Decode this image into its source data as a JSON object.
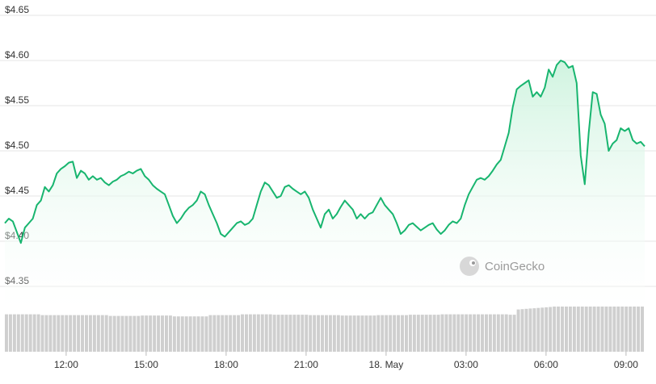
{
  "chart_data": {
    "type": "area",
    "watermark": "CoinGecko",
    "y_axis": {
      "ticks": [
        4.65,
        4.6,
        4.55,
        4.5,
        4.45,
        4.4,
        4.35
      ],
      "tick_labels": [
        "$4.65",
        "$4.60",
        "$4.55",
        "$4.50",
        "$4.45",
        "$4.40",
        "$4.35"
      ],
      "range": [
        4.325,
        4.65
      ]
    },
    "x_axis": {
      "tick_labels": [
        "12:00",
        "15:00",
        "18:00",
        "21:00",
        "18. May",
        "03:00",
        "06:00",
        "09:00"
      ],
      "tick_hours": [
        2.3,
        5.3,
        8.3,
        11.3,
        14.3,
        17.3,
        20.3,
        23.3
      ],
      "range_hours": [
        0,
        24
      ]
    },
    "series": [
      {
        "price_points_hours_value": [
          [
            0.0,
            4.42
          ],
          [
            0.15,
            4.425
          ],
          [
            0.3,
            4.422
          ],
          [
            0.45,
            4.41
          ],
          [
            0.6,
            4.398
          ],
          [
            0.75,
            4.415
          ],
          [
            0.9,
            4.42
          ],
          [
            1.05,
            4.425
          ],
          [
            1.2,
            4.44
          ],
          [
            1.35,
            4.445
          ],
          [
            1.5,
            4.46
          ],
          [
            1.65,
            4.455
          ],
          [
            1.8,
            4.462
          ],
          [
            1.95,
            4.475
          ],
          [
            2.1,
            4.48
          ],
          [
            2.25,
            4.483
          ],
          [
            2.4,
            4.487
          ],
          [
            2.55,
            4.488
          ],
          [
            2.7,
            4.47
          ],
          [
            2.85,
            4.478
          ],
          [
            3.0,
            4.475
          ],
          [
            3.15,
            4.468
          ],
          [
            3.3,
            4.472
          ],
          [
            3.45,
            4.468
          ],
          [
            3.6,
            4.47
          ],
          [
            3.75,
            4.465
          ],
          [
            3.9,
            4.462
          ],
          [
            4.05,
            4.466
          ],
          [
            4.2,
            4.468
          ],
          [
            4.35,
            4.472
          ],
          [
            4.5,
            4.474
          ],
          [
            4.65,
            4.477
          ],
          [
            4.8,
            4.475
          ],
          [
            4.95,
            4.478
          ],
          [
            5.1,
            4.48
          ],
          [
            5.25,
            4.472
          ],
          [
            5.4,
            4.468
          ],
          [
            5.55,
            4.462
          ],
          [
            5.7,
            4.458
          ],
          [
            5.85,
            4.455
          ],
          [
            6.0,
            4.452
          ],
          [
            6.15,
            4.44
          ],
          [
            6.3,
            4.428
          ],
          [
            6.45,
            4.42
          ],
          [
            6.6,
            4.425
          ],
          [
            6.75,
            4.432
          ],
          [
            6.9,
            4.437
          ],
          [
            7.05,
            4.44
          ],
          [
            7.2,
            4.445
          ],
          [
            7.35,
            4.455
          ],
          [
            7.5,
            4.452
          ],
          [
            7.65,
            4.44
          ],
          [
            7.8,
            4.43
          ],
          [
            7.95,
            4.42
          ],
          [
            8.1,
            4.408
          ],
          [
            8.25,
            4.405
          ],
          [
            8.4,
            4.41
          ],
          [
            8.55,
            4.415
          ],
          [
            8.7,
            4.42
          ],
          [
            8.85,
            4.422
          ],
          [
            9.0,
            4.418
          ],
          [
            9.15,
            4.42
          ],
          [
            9.3,
            4.425
          ],
          [
            9.45,
            4.44
          ],
          [
            9.6,
            4.455
          ],
          [
            9.75,
            4.465
          ],
          [
            9.9,
            4.462
          ],
          [
            10.05,
            4.455
          ],
          [
            10.2,
            4.448
          ],
          [
            10.35,
            4.45
          ],
          [
            10.5,
            4.46
          ],
          [
            10.65,
            4.462
          ],
          [
            10.8,
            4.458
          ],
          [
            10.95,
            4.455
          ],
          [
            11.1,
            4.452
          ],
          [
            11.25,
            4.455
          ],
          [
            11.4,
            4.448
          ],
          [
            11.55,
            4.435
          ],
          [
            11.7,
            4.425
          ],
          [
            11.85,
            4.415
          ],
          [
            12.0,
            4.43
          ],
          [
            12.15,
            4.435
          ],
          [
            12.3,
            4.425
          ],
          [
            12.45,
            4.43
          ],
          [
            12.6,
            4.438
          ],
          [
            12.75,
            4.445
          ],
          [
            12.9,
            4.44
          ],
          [
            13.05,
            4.435
          ],
          [
            13.2,
            4.425
          ],
          [
            13.35,
            4.43
          ],
          [
            13.5,
            4.425
          ],
          [
            13.65,
            4.43
          ],
          [
            13.8,
            4.432
          ],
          [
            13.95,
            4.44
          ],
          [
            14.1,
            4.448
          ],
          [
            14.25,
            4.44
          ],
          [
            14.4,
            4.435
          ],
          [
            14.55,
            4.43
          ],
          [
            14.7,
            4.42
          ],
          [
            14.85,
            4.408
          ],
          [
            15.0,
            4.412
          ],
          [
            15.15,
            4.418
          ],
          [
            15.3,
            4.42
          ],
          [
            15.45,
            4.416
          ],
          [
            15.6,
            4.412
          ],
          [
            15.75,
            4.415
          ],
          [
            15.9,
            4.418
          ],
          [
            16.05,
            4.42
          ],
          [
            16.2,
            4.413
          ],
          [
            16.35,
            4.408
          ],
          [
            16.5,
            4.412
          ],
          [
            16.65,
            4.418
          ],
          [
            16.8,
            4.422
          ],
          [
            16.95,
            4.42
          ],
          [
            17.1,
            4.425
          ],
          [
            17.25,
            4.44
          ],
          [
            17.4,
            4.452
          ],
          [
            17.55,
            4.46
          ],
          [
            17.7,
            4.468
          ],
          [
            17.85,
            4.47
          ],
          [
            18.0,
            4.468
          ],
          [
            18.15,
            4.472
          ],
          [
            18.3,
            4.478
          ],
          [
            18.45,
            4.485
          ],
          [
            18.6,
            4.49
          ],
          [
            18.75,
            4.505
          ],
          [
            18.9,
            4.52
          ],
          [
            19.05,
            4.548
          ],
          [
            19.2,
            4.568
          ],
          [
            19.35,
            4.572
          ],
          [
            19.5,
            4.575
          ],
          [
            19.65,
            4.578
          ],
          [
            19.8,
            4.56
          ],
          [
            19.95,
            4.565
          ],
          [
            20.1,
            4.56
          ],
          [
            20.25,
            4.57
          ],
          [
            20.4,
            4.59
          ],
          [
            20.55,
            4.582
          ],
          [
            20.7,
            4.595
          ],
          [
            20.85,
            4.6
          ],
          [
            21.0,
            4.598
          ],
          [
            21.15,
            4.592
          ],
          [
            21.3,
            4.594
          ],
          [
            21.45,
            4.575
          ],
          [
            21.6,
            4.495
          ],
          [
            21.75,
            4.463
          ],
          [
            21.9,
            4.52
          ],
          [
            22.05,
            4.565
          ],
          [
            22.2,
            4.563
          ],
          [
            22.35,
            4.54
          ],
          [
            22.5,
            4.53
          ],
          [
            22.65,
            4.5
          ],
          [
            22.8,
            4.508
          ],
          [
            22.95,
            4.512
          ],
          [
            23.1,
            4.525
          ],
          [
            23.25,
            4.522
          ],
          [
            23.4,
            4.525
          ],
          [
            23.55,
            4.512
          ],
          [
            23.7,
            4.508
          ],
          [
            23.85,
            4.51
          ],
          [
            24.0,
            4.505
          ]
        ]
      }
    ],
    "volume_bars_count": 160,
    "volume_relative_levels": [
      0.92,
      0.9,
      0.9,
      0.88,
      0.89,
      0.87,
      0.9,
      0.92,
      0.91,
      0.9,
      0.89,
      0.9,
      0.91,
      0.92,
      0.92,
      0.91,
      0.9,
      0.92,
      0.93,
      0.91
    ],
    "colors": {
      "line": "#18b56f",
      "fill_top": "#cdf3de",
      "fill_bottom": "#ffffff",
      "grid": "#e6e6e6",
      "volume": "#cfcfcf",
      "axis_text": "#333333",
      "watermark": "#9a9a9a"
    }
  }
}
